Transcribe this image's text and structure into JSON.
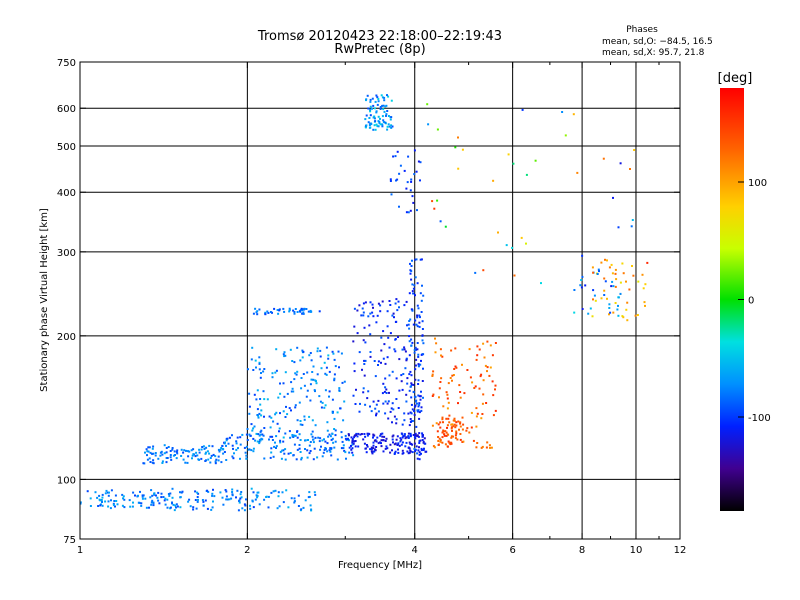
{
  "chart_data": {
    "type": "scatter",
    "title": "Tromsø 20120423 22:18:00–22:19:43",
    "subtitle": "RwPretec (8p)",
    "phase_box": {
      "title": "Phases",
      "line1": "mean, sd,O: −84.5, 16.5",
      "line2": "mean, sd,X:  95.7, 21.8"
    },
    "xlabel": "Frequency [MHz]",
    "ylabel": "Stationary phase Virtual Height [km]",
    "xscale": "log",
    "yscale": "log",
    "xlim": [
      1,
      12
    ],
    "ylim": [
      75,
      750
    ],
    "xticks": [
      1,
      2,
      4,
      6,
      8,
      10,
      12
    ],
    "xtick_labels": [
      "1",
      "2",
      "4",
      "6",
      "8",
      "10",
      "12"
    ],
    "xgrid": [
      2,
      4,
      6,
      8,
      10
    ],
    "yticks": [
      75,
      100,
      200,
      300,
      400,
      500,
      600,
      750
    ],
    "ytick_labels": [
      "75",
      "100",
      "200",
      "300",
      "400",
      "500",
      "600",
      "750"
    ],
    "ygrid": [
      100,
      200,
      300,
      400,
      500,
      600
    ],
    "grid": true,
    "colorbar": {
      "label": "[deg]",
      "range": [
        -180,
        180
      ],
      "ticks": [
        100,
        0,
        -100
      ],
      "tick_labels": [
        "100",
        "0",
        "-100"
      ]
    },
    "clusters": [
      {
        "x": [
          1.0,
          1.45
        ],
        "y": [
          87,
          95
        ],
        "n": 90,
        "phase": [
          -100,
          -55
        ]
      },
      {
        "x": [
          1.45,
          2.1
        ],
        "y": [
          86,
          96
        ],
        "n": 90,
        "phase": [
          -100,
          -55
        ]
      },
      {
        "x": [
          2.1,
          2.65
        ],
        "y": [
          86,
          95
        ],
        "n": 35,
        "phase": [
          -100,
          -55
        ]
      },
      {
        "x": [
          1.3,
          1.85
        ],
        "y": [
          108,
          118
        ],
        "n": 110,
        "phase": [
          -95,
          -60
        ]
      },
      {
        "x": [
          1.8,
          3.1
        ],
        "y": [
          110,
          125
        ],
        "n": 150,
        "phase": [
          -100,
          -60
        ]
      },
      {
        "x": [
          2.0,
          3.0
        ],
        "y": [
          120,
          190
        ],
        "n": 200,
        "phase": [
          -100,
          -50
        ]
      },
      {
        "x": [
          2.05,
          2.7
        ],
        "y": [
          222,
          228
        ],
        "n": 45,
        "phase": [
          -100,
          -65
        ]
      },
      {
        "x": [
          3.0,
          4.2
        ],
        "y": [
          113,
          125
        ],
        "n": 170,
        "phase": [
          -130,
          -100
        ]
      },
      {
        "x": [
          3.1,
          4.1
        ],
        "y": [
          130,
          240
        ],
        "n": 170,
        "phase": [
          -125,
          -85
        ]
      },
      {
        "x": [
          3.9,
          4.15
        ],
        "y": [
          110,
          290
        ],
        "n": 120,
        "phase": [
          -120,
          -80
        ]
      },
      {
        "x": [
          3.6,
          4.1
        ],
        "y": [
          360,
          490
        ],
        "n": 30,
        "phase": [
          -120,
          -80
        ]
      },
      {
        "x": [
          3.25,
          3.65
        ],
        "y": [
          540,
          640
        ],
        "n": 90,
        "phase": [
          -95,
          -40
        ]
      },
      {
        "x": [
          4.3,
          5.6
        ],
        "y": [
          115,
          200
        ],
        "n": 110,
        "phase": [
          100,
          160
        ]
      },
      {
        "x": [
          4.4,
          4.9
        ],
        "y": [
          118,
          135
        ],
        "n": 60,
        "phase": [
          120,
          160
        ]
      },
      {
        "x": [
          8.3,
          10.5
        ],
        "y": [
          215,
          290
        ],
        "n": 40,
        "phase": [
          60,
          130
        ]
      },
      {
        "x": [
          7.6,
          9.4
        ],
        "y": [
          220,
          280
        ],
        "n": 30,
        "phase": [
          -120,
          -40
        ]
      },
      {
        "x": [
          4.2,
          10.5
        ],
        "y": [
          250,
          640
        ],
        "n": 45,
        "phase": [
          -120,
          160
        ]
      }
    ]
  }
}
